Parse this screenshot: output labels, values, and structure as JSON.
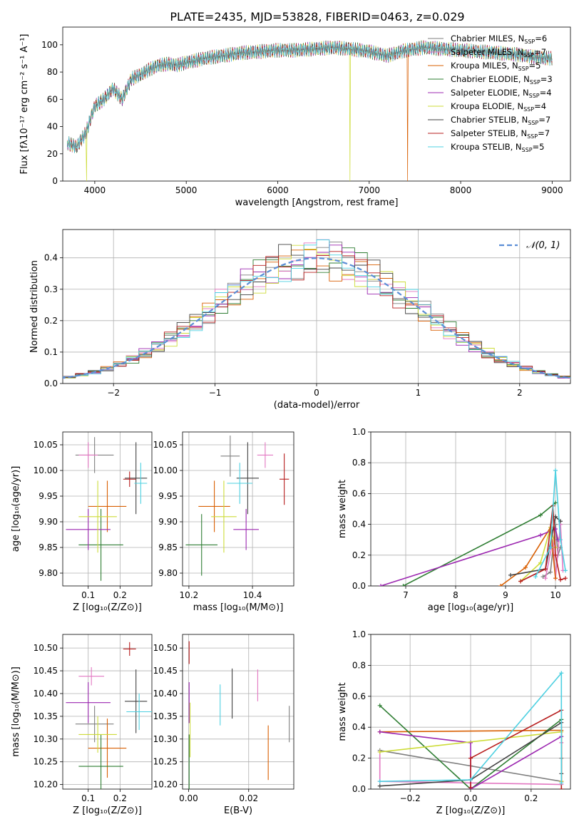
{
  "title": "PLATE=2435, MJD=53828, FIBERID=0463, z=0.029",
  "colors": [
    "#7f7f7f",
    "#e377c2",
    "#d95f02",
    "#2e7d32",
    "#9c27b0",
    "#cddc39",
    "#424242",
    "#b71c1c",
    "#4dd0e1"
  ],
  "legend": [
    {
      "label": "Chabrier MILES, N",
      "sub": "SSP",
      "suffix": "=6"
    },
    {
      "label": "Salpeter MILES, N",
      "sub": "SSP",
      "suffix": "=7"
    },
    {
      "label": "Kroupa MILES, N",
      "sub": "SSP",
      "suffix": "=5"
    },
    {
      "label": "Chabrier ELODIE, N",
      "sub": "SSP",
      "suffix": "=3"
    },
    {
      "label": "Salpeter ELODIE, N",
      "sub": "SSP",
      "suffix": "=4"
    },
    {
      "label": "Kroupa ELODIE, N",
      "sub": "SSP",
      "suffix": "=4"
    },
    {
      "label": "Chabrier STELIB, N",
      "sub": "SSP",
      "suffix": "=7"
    },
    {
      "label": "Salpeter STELIB, N",
      "sub": "SSP",
      "suffix": "=7"
    },
    {
      "label": "Kroupa STELIB, N",
      "sub": "SSP",
      "suffix": "=5"
    }
  ],
  "chart_data": [
    {
      "id": "spectrum",
      "type": "line",
      "xlabel": "wavelength [Angstrom, rest frame]",
      "ylabel": "Flux [fλ10⁻¹⁷ erg cm⁻² s⁻¹ A⁻¹]",
      "xlim": [
        3650,
        9200
      ],
      "ylim": [
        0,
        113
      ],
      "xticks": [
        4000,
        5000,
        6000,
        7000,
        8000,
        9000
      ],
      "yticks": [
        0,
        20,
        40,
        60,
        80,
        100
      ],
      "series_x": [
        3700,
        3800,
        3900,
        4000,
        4100,
        4200,
        4300,
        4400,
        4500,
        4600,
        4700,
        4800,
        4900,
        5000,
        5200,
        5400,
        5600,
        5800,
        6000,
        6200,
        6400,
        6600,
        6800,
        7000,
        7200,
        7400,
        7600,
        7800,
        8000,
        8200,
        8400,
        8600,
        8800,
        9000
      ],
      "series_y": [
        28,
        25,
        35,
        55,
        60,
        68,
        60,
        75,
        78,
        82,
        85,
        86,
        85,
        87,
        90,
        92,
        94,
        95,
        96,
        96,
        97,
        98,
        97,
        95,
        92,
        96,
        98,
        97,
        96,
        95,
        94,
        93,
        91,
        90
      ],
      "drops": [
        {
          "x": 3910,
          "series": 5
        },
        {
          "x": 6790,
          "series": 5
        },
        {
          "x": 7420,
          "series": 2
        }
      ],
      "grid": false,
      "legend_position": "upper-right"
    },
    {
      "id": "residuals",
      "type": "histogram",
      "xlabel": "(data-model)/error",
      "ylabel": "Normed distribution",
      "xlim": [
        -2.5,
        2.5
      ],
      "ylim": [
        0,
        0.49
      ],
      "xticks": [
        -2,
        -1,
        0,
        1,
        2
      ],
      "yticks": [
        0.0,
        0.1,
        0.2,
        0.3,
        0.4
      ],
      "reference": {
        "label": "𝒩(0, 1)",
        "mean": 0,
        "sigma": 1
      },
      "grid": true,
      "legend_position": "upper-right"
    },
    {
      "id": "age_vs_Z",
      "type": "errorbar",
      "xlabel": "Z [log₁₀(Z/Z⊙)]",
      "ylabel": "age  [log₁₀(age/yr)]",
      "xlim": [
        0.02,
        0.3
      ],
      "ylim": [
        9.775,
        10.075
      ],
      "xticks": [
        0.1,
        0.2
      ],
      "yticks": [
        9.8,
        9.85,
        9.9,
        9.95,
        10.0,
        10.05
      ],
      "points": [
        {
          "x": 0.12,
          "y": 10.03,
          "xe": 0.06,
          "ye": 0.035,
          "s": 0
        },
        {
          "x": 0.1,
          "y": 10.03,
          "xe": 0.03,
          "ye": 0.025,
          "s": 1
        },
        {
          "x": 0.16,
          "y": 9.93,
          "xe": 0.06,
          "ye": 0.05,
          "s": 2
        },
        {
          "x": 0.14,
          "y": 9.855,
          "xe": 0.07,
          "ye": 0.07,
          "s": 3
        },
        {
          "x": 0.1,
          "y": 9.885,
          "xe": 0.07,
          "ye": 0.04,
          "s": 4
        },
        {
          "x": 0.13,
          "y": 9.91,
          "xe": 0.06,
          "ye": 0.07,
          "s": 5
        },
        {
          "x": 0.25,
          "y": 9.985,
          "xe": 0.035,
          "ye": 0.07,
          "s": 6
        },
        {
          "x": 0.23,
          "y": 9.983,
          "xe": 0.02,
          "ye": 0.015,
          "s": 7
        },
        {
          "x": 0.265,
          "y": 9.975,
          "xe": 0.02,
          "ye": 0.04,
          "s": 8
        }
      ]
    },
    {
      "id": "age_vs_mass",
      "type": "errorbar",
      "xlabel": "mass [log₁₀(M/M⊙)]",
      "ylabel": "",
      "xlim": [
        10.18,
        10.53
      ],
      "ylim": [
        9.775,
        10.075
      ],
      "xticks": [
        10.2,
        10.4
      ],
      "yticks": [
        9.8,
        9.85,
        9.9,
        9.95,
        10.0,
        10.05
      ],
      "points": [
        {
          "x": 10.33,
          "y": 10.028,
          "xe": 0.03,
          "ye": 0.04,
          "s": 0
        },
        {
          "x": 10.44,
          "y": 10.03,
          "xe": 0.025,
          "ye": 0.025,
          "s": 1
        },
        {
          "x": 10.28,
          "y": 9.93,
          "xe": 0.05,
          "ye": 0.05,
          "s": 2
        },
        {
          "x": 10.24,
          "y": 9.855,
          "xe": 0.05,
          "ye": 0.06,
          "s": 3
        },
        {
          "x": 10.38,
          "y": 9.885,
          "xe": 0.04,
          "ye": 0.04,
          "s": 4
        },
        {
          "x": 10.31,
          "y": 9.91,
          "xe": 0.04,
          "ye": 0.07,
          "s": 5
        },
        {
          "x": 10.385,
          "y": 9.985,
          "xe": 0.035,
          "ye": 0.07,
          "s": 6
        },
        {
          "x": 10.5,
          "y": 9.983,
          "xe": 0.015,
          "ye": 0.05,
          "s": 7
        },
        {
          "x": 10.36,
          "y": 9.975,
          "xe": 0.04,
          "ye": 0.04,
          "s": 8
        }
      ]
    },
    {
      "id": "weight_vs_age",
      "type": "line",
      "xlabel": "age  [log₁₀(age/yr)]",
      "ylabel": "mass weight",
      "xlim": [
        6.3,
        10.3
      ],
      "ylim": [
        0,
        1.0
      ],
      "xticks": [
        7,
        8,
        9,
        10
      ],
      "yticks": [
        0.0,
        0.2,
        0.4,
        0.6,
        0.8,
        1.0
      ],
      "series": [
        {
          "x": [
            9.75,
            9.9,
            10.0,
            10.05,
            10.1
          ],
          "y": [
            0.06,
            0.09,
            0.4,
            0.2,
            0.25
          ],
          "s": 0
        },
        {
          "x": 9.8,
          "y": 0,
          "s": 1,
          "x_list": [
            9.8,
            9.95,
            10.0,
            10.1,
            10.15
          ],
          "y_list": [
            0.05,
            0.3,
            0.05,
            0.4,
            0.1
          ]
        },
        {
          "x_list": [
            8.9,
            9.4,
            9.9,
            10.0
          ],
          "y_list": [
            0.0,
            0.12,
            0.38,
            0.05
          ],
          "s": 2
        },
        {
          "x_list": [
            6.95,
            9.7,
            10.0
          ],
          "y_list": [
            0.0,
            0.46,
            0.54
          ],
          "s": 3
        },
        {
          "x_list": [
            6.5,
            9.7,
            10.0,
            10.05
          ],
          "y_list": [
            0.0,
            0.33,
            0.37,
            0.3
          ],
          "s": 4
        },
        {
          "x_list": [
            9.3,
            9.7,
            9.9,
            10.0
          ],
          "y_list": [
            0.03,
            0.15,
            0.38,
            0.25
          ],
          "s": 5
        },
        {
          "x_list": [
            9.1,
            9.8,
            10.0,
            10.1
          ],
          "y_list": [
            0.07,
            0.11,
            0.45,
            0.42
          ],
          "s": 6
        },
        {
          "x_list": [
            9.3,
            9.8,
            9.95,
            10.0,
            10.1,
            10.2
          ],
          "y_list": [
            0.03,
            0.11,
            0.52,
            0.2,
            0.04,
            0.05
          ],
          "s": 7
        },
        {
          "x_list": [
            9.6,
            9.9,
            10.0,
            10.1,
            10.2
          ],
          "y_list": [
            0.06,
            0.25,
            0.75,
            0.3,
            0.1
          ],
          "s": 8
        }
      ]
    },
    {
      "id": "mass_vs_Z",
      "type": "errorbar",
      "xlabel": "Z [log₁₀(Z/Z⊙)]",
      "ylabel": "mass [log₁₀(M/M⊙)]",
      "xlim": [
        0.02,
        0.3
      ],
      "ylim": [
        10.19,
        10.53
      ],
      "xticks": [
        0.1,
        0.2
      ],
      "yticks": [
        10.2,
        10.25,
        10.3,
        10.35,
        10.4,
        10.45,
        10.5
      ],
      "points": [
        {
          "x": 0.12,
          "y": 10.333,
          "xe": 0.06,
          "ye": 0.04,
          "s": 0
        },
        {
          "x": 0.11,
          "y": 10.438,
          "xe": 0.04,
          "ye": 0.02,
          "s": 1
        },
        {
          "x": 0.16,
          "y": 10.28,
          "xe": 0.06,
          "ye": 0.065,
          "s": 2
        },
        {
          "x": 0.14,
          "y": 10.24,
          "xe": 0.07,
          "ye": 0.07,
          "s": 3
        },
        {
          "x": 0.1,
          "y": 10.38,
          "xe": 0.07,
          "ye": 0.045,
          "s": 4
        },
        {
          "x": 0.13,
          "y": 10.31,
          "xe": 0.06,
          "ye": 0.04,
          "s": 5
        },
        {
          "x": 0.25,
          "y": 10.383,
          "xe": 0.035,
          "ye": 0.07,
          "s": 6
        },
        {
          "x": 0.23,
          "y": 10.498,
          "xe": 0.02,
          "ye": 0.015,
          "s": 7
        },
        {
          "x": 0.26,
          "y": 10.36,
          "xe": 0.04,
          "ye": 0.04,
          "s": 8
        }
      ]
    },
    {
      "id": "mass_vs_EBV",
      "type": "errorbar",
      "xlabel": "E(B-V)",
      "ylabel": "",
      "xlim": [
        -0.002,
        0.035
      ],
      "ylim": [
        10.19,
        10.53
      ],
      "xticks": [
        0.0,
        0.02
      ],
      "yticks": [
        10.2,
        10.25,
        10.3,
        10.35,
        10.4,
        10.45,
        10.5
      ],
      "points": [
        {
          "x": 0.0335,
          "y": 10.333,
          "xe": 0,
          "ye": 0.04,
          "s": 0
        },
        {
          "x": 0.023,
          "y": 10.418,
          "xe": 0,
          "ye": 0.035,
          "s": 1
        },
        {
          "x": 0.0265,
          "y": 10.27,
          "xe": 0,
          "ye": 0.06,
          "s": 2
        },
        {
          "x": 0.0002,
          "y": 10.24,
          "xe": 0,
          "ye": 0.07,
          "s": 3
        },
        {
          "x": 0.0002,
          "y": 10.38,
          "xe": 0,
          "ye": 0.045,
          "s": 4
        },
        {
          "x": 0.0005,
          "y": 10.32,
          "xe": 0,
          "ye": 0.06,
          "s": 5
        },
        {
          "x": 0.0145,
          "y": 10.4,
          "xe": 0,
          "ye": 0.055,
          "s": 6
        },
        {
          "x": 0.0002,
          "y": 10.49,
          "xe": 0,
          "ye": 0.025,
          "s": 7
        },
        {
          "x": 0.0105,
          "y": 10.375,
          "xe": 0,
          "ye": 0.045,
          "s": 8
        }
      ]
    },
    {
      "id": "weight_vs_Z",
      "type": "line",
      "xlabel": "Z [log₁₀(Z/Z⊙)]",
      "ylabel": "mass weight",
      "xlim": [
        -0.33,
        0.33
      ],
      "ylim": [
        0,
        1.0
      ],
      "xticks": [
        -0.2,
        0.0,
        0.2
      ],
      "yticks": [
        0.0,
        0.2,
        0.4,
        0.6,
        0.8,
        1.0
      ],
      "series": [
        {
          "x_list": [
            -0.3,
            0.0,
            0.3,
            0.3
          ],
          "y_list": [
            0.25,
            0.15,
            0.05,
            0.2
          ],
          "s": 0
        },
        {
          "x_list": [
            -0.3,
            -0.3,
            0.3,
            0.3
          ],
          "y_list": [
            0.24,
            0.05,
            0.03,
            0.3
          ],
          "s": 1
        },
        {
          "x_list": [
            -0.3,
            0.3,
            0.3
          ],
          "y_list": [
            0.37,
            0.38,
            0.05
          ],
          "s": 2
        },
        {
          "x_list": [
            -0.3,
            0.0,
            0.3
          ],
          "y_list": [
            0.54,
            0.0,
            0.45
          ],
          "s": 3
        },
        {
          "x_list": [
            -0.3,
            0.0,
            0.0,
            0.3
          ],
          "y_list": [
            0.37,
            0.3,
            0.0,
            0.34
          ],
          "s": 4
        },
        {
          "x_list": [
            -0.3,
            0.3,
            0.3
          ],
          "y_list": [
            0.24,
            0.37,
            0.05
          ],
          "s": 5
        },
        {
          "x_list": [
            -0.3,
            0.0,
            0.3,
            0.3
          ],
          "y_list": [
            0.02,
            0.06,
            0.43,
            0.1
          ],
          "s": 6
        },
        {
          "x_list": [
            0.0,
            0.0,
            0.3,
            0.3
          ],
          "y_list": [
            0.01,
            0.2,
            0.51,
            0.0
          ],
          "s": 7
        },
        {
          "x_list": [
            -0.3,
            0.0,
            0.3,
            0.3
          ],
          "y_list": [
            0.05,
            0.06,
            0.75,
            0.04
          ],
          "s": 8
        }
      ]
    }
  ]
}
